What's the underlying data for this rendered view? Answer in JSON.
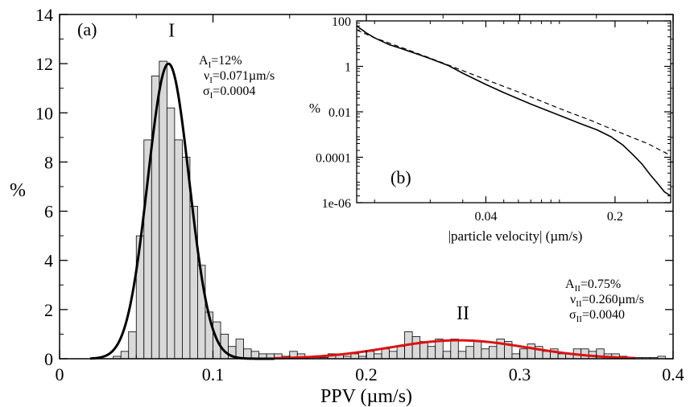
{
  "chart_data": [
    {
      "type": "bar",
      "panel_label": "(a)",
      "xlabel": "PPV (µm/s)",
      "ylabel": "%",
      "xlim": [
        0,
        0.4
      ],
      "ylim": [
        0,
        14
      ],
      "x_ticks": [
        "0",
        "0.1",
        "0.2",
        "0.3",
        "0.4"
      ],
      "y_ticks": [
        "0",
        "2",
        "4",
        "6",
        "8",
        "10",
        "12",
        "14"
      ],
      "bar_color": "#d9d9d9",
      "bin_width": 0.005,
      "histogram": {
        "x": [
          0.035,
          0.04,
          0.045,
          0.05,
          0.055,
          0.06,
          0.065,
          0.07,
          0.075,
          0.08,
          0.085,
          0.09,
          0.095,
          0.1,
          0.105,
          0.11,
          0.115,
          0.12,
          0.125,
          0.13,
          0.135,
          0.14,
          0.145,
          0.15,
          0.155,
          0.16,
          0.165,
          0.17,
          0.175,
          0.18,
          0.185,
          0.19,
          0.195,
          0.2,
          0.205,
          0.21,
          0.215,
          0.22,
          0.225,
          0.23,
          0.235,
          0.24,
          0.245,
          0.25,
          0.255,
          0.26,
          0.265,
          0.27,
          0.275,
          0.28,
          0.285,
          0.29,
          0.295,
          0.3,
          0.305,
          0.31,
          0.315,
          0.32,
          0.325,
          0.33,
          0.335,
          0.34,
          0.345,
          0.35,
          0.355,
          0.36,
          0.365,
          0.37,
          0.375,
          0.38,
          0.385,
          0.39
        ],
        "y": [
          0.1,
          0.3,
          1.1,
          5.0,
          8.9,
          11.5,
          12.1,
          10.2,
          8.9,
          8.2,
          6.2,
          3.8,
          1.9,
          1.5,
          1.0,
          0.5,
          0.8,
          0.4,
          0.3,
          0.2,
          0.2,
          0.2,
          0.1,
          0.3,
          0.2,
          0.05,
          0.05,
          0.05,
          0.2,
          0.2,
          0.1,
          0.2,
          0.1,
          0.3,
          0.2,
          0.4,
          0.3,
          0.5,
          1.1,
          0.9,
          0.7,
          0.5,
          0.8,
          0.3,
          0.8,
          0.3,
          0.5,
          0.7,
          0.4,
          0.5,
          0.8,
          0.7,
          0.2,
          0.4,
          0.6,
          0.5,
          0.3,
          0.4,
          0.2,
          0.2,
          0.4,
          0.4,
          0.3,
          0.4,
          0.2,
          0.2,
          0.1,
          0.05,
          0.05,
          0.05,
          0.05,
          0.1
        ]
      },
      "fits": [
        {
          "name": "I",
          "mu": 0.071,
          "sigma": 0.0004,
          "color": "#000000",
          "x_range": [
            0.02,
            0.14
          ],
          "label_x": 0.073,
          "label_y": 13.1
        },
        {
          "name": "II",
          "mu": 0.26,
          "sigma": 0.004,
          "color": "#dd1111",
          "x_range": [
            0.14,
            0.375
          ],
          "label_x": 0.263,
          "label_y": 1.6
        }
      ],
      "annotation_I": {
        "A_main": "A",
        "A_sub": "I",
        "A_val": "=12%",
        "nu_main": "ν",
        "nu_sub": "I",
        "nu_val": "=0.071µm/s",
        "sigma_main": "σ",
        "sigma_sub": "I",
        "sigma_val": "=0.0004"
      },
      "annotation_II": {
        "A_main": "A",
        "A_sub": "II",
        "A_val": "=0.75%",
        "nu_main": "ν",
        "nu_sub": "II",
        "nu_val": "=0.260µm/s",
        "sigma_main": "σ",
        "sigma_sub": "II",
        "sigma_val": "=0.0040"
      }
    },
    {
      "type": "line",
      "panel_label": "(b)",
      "xlabel": "|particle velocity| (µm/s)",
      "ylabel": "%",
      "x_scale": "log",
      "y_scale": "log",
      "xlim": [
        0.008,
        0.4
      ],
      "ylim": [
        1e-06,
        100
      ],
      "x_ticks": [
        {
          "v": 0.04,
          "label": "0.04"
        },
        {
          "v": 0.2,
          "label": "0.2"
        }
      ],
      "y_ticks": [
        {
          "v": 100,
          "label": "100"
        },
        {
          "v": 1,
          "label": "1"
        },
        {
          "v": 0.01,
          "label": "0.01"
        },
        {
          "v": 0.0001,
          "label": "0.0001"
        },
        {
          "v": 1e-06,
          "label": "1e-06"
        }
      ],
      "series": [
        {
          "style": "solid",
          "x": [
            0.008,
            0.009,
            0.01,
            0.012,
            0.014,
            0.017,
            0.02,
            0.025,
            0.03,
            0.04,
            0.05,
            0.07,
            0.1,
            0.13,
            0.16,
            0.19,
            0.22,
            0.25,
            0.28,
            0.31,
            0.34,
            0.37,
            0.4
          ],
          "y": [
            60,
            30,
            18,
            9.0,
            6.0,
            3.5,
            2.2,
            1.1,
            0.5,
            0.16,
            0.07,
            0.022,
            0.007,
            0.003,
            0.0016,
            0.0008,
            0.00035,
            0.00013,
            5e-05,
            1.7e-05,
            7e-06,
            3e-06,
            2e-06
          ]
        },
        {
          "style": "dashed",
          "x": [
            0.008,
            0.01,
            0.015,
            0.02,
            0.03,
            0.04,
            0.06,
            0.1,
            0.15,
            0.2,
            0.3,
            0.4
          ],
          "y": [
            40,
            18,
            5.5,
            2.3,
            0.65,
            0.26,
            0.075,
            0.014,
            0.004,
            0.0015,
            0.0004,
            0.00012
          ]
        }
      ]
    }
  ]
}
